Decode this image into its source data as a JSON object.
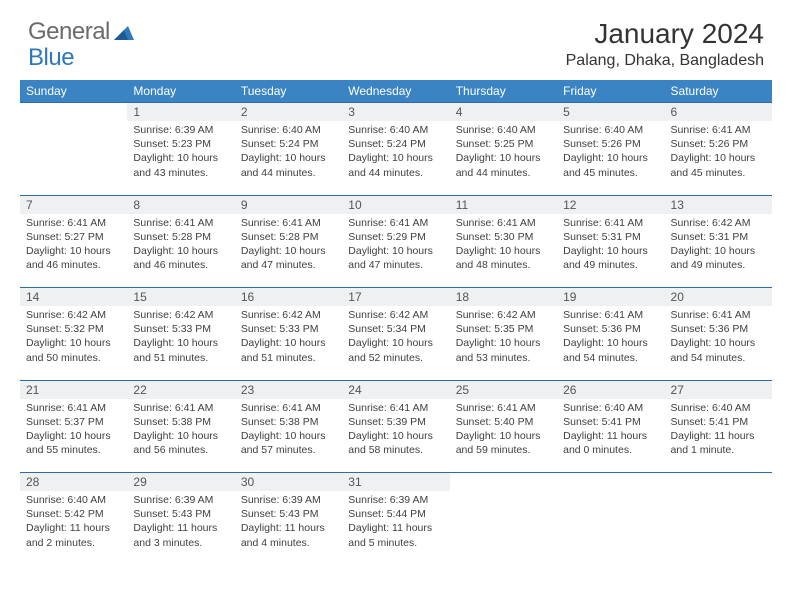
{
  "brand": {
    "part1": "General",
    "part2": "Blue"
  },
  "title": "January 2024",
  "location": "Palang, Dhaka, Bangladesh",
  "colors": {
    "header_bg": "#3b84c4",
    "rule": "#2d6da3",
    "daynum_bg": "#eef0f1",
    "brand_gray": "#6b6b6b",
    "brand_blue": "#2f78bd"
  },
  "weekdays": [
    "Sunday",
    "Monday",
    "Tuesday",
    "Wednesday",
    "Thursday",
    "Friday",
    "Saturday"
  ],
  "weeks": [
    {
      "nums": [
        "",
        "1",
        "2",
        "3",
        "4",
        "5",
        "6"
      ],
      "cells": [
        null,
        {
          "sr": "6:39 AM",
          "ss": "5:23 PM",
          "dl": "10 hours and 43 minutes."
        },
        {
          "sr": "6:40 AM",
          "ss": "5:24 PM",
          "dl": "10 hours and 44 minutes."
        },
        {
          "sr": "6:40 AM",
          "ss": "5:24 PM",
          "dl": "10 hours and 44 minutes."
        },
        {
          "sr": "6:40 AM",
          "ss": "5:25 PM",
          "dl": "10 hours and 44 minutes."
        },
        {
          "sr": "6:40 AM",
          "ss": "5:26 PM",
          "dl": "10 hours and 45 minutes."
        },
        {
          "sr": "6:41 AM",
          "ss": "5:26 PM",
          "dl": "10 hours and 45 minutes."
        }
      ]
    },
    {
      "nums": [
        "7",
        "8",
        "9",
        "10",
        "11",
        "12",
        "13"
      ],
      "cells": [
        {
          "sr": "6:41 AM",
          "ss": "5:27 PM",
          "dl": "10 hours and 46 minutes."
        },
        {
          "sr": "6:41 AM",
          "ss": "5:28 PM",
          "dl": "10 hours and 46 minutes."
        },
        {
          "sr": "6:41 AM",
          "ss": "5:28 PM",
          "dl": "10 hours and 47 minutes."
        },
        {
          "sr": "6:41 AM",
          "ss": "5:29 PM",
          "dl": "10 hours and 47 minutes."
        },
        {
          "sr": "6:41 AM",
          "ss": "5:30 PM",
          "dl": "10 hours and 48 minutes."
        },
        {
          "sr": "6:41 AM",
          "ss": "5:31 PM",
          "dl": "10 hours and 49 minutes."
        },
        {
          "sr": "6:42 AM",
          "ss": "5:31 PM",
          "dl": "10 hours and 49 minutes."
        }
      ]
    },
    {
      "nums": [
        "14",
        "15",
        "16",
        "17",
        "18",
        "19",
        "20"
      ],
      "cells": [
        {
          "sr": "6:42 AM",
          "ss": "5:32 PM",
          "dl": "10 hours and 50 minutes."
        },
        {
          "sr": "6:42 AM",
          "ss": "5:33 PM",
          "dl": "10 hours and 51 minutes."
        },
        {
          "sr": "6:42 AM",
          "ss": "5:33 PM",
          "dl": "10 hours and 51 minutes."
        },
        {
          "sr": "6:42 AM",
          "ss": "5:34 PM",
          "dl": "10 hours and 52 minutes."
        },
        {
          "sr": "6:42 AM",
          "ss": "5:35 PM",
          "dl": "10 hours and 53 minutes."
        },
        {
          "sr": "6:41 AM",
          "ss": "5:36 PM",
          "dl": "10 hours and 54 minutes."
        },
        {
          "sr": "6:41 AM",
          "ss": "5:36 PM",
          "dl": "10 hours and 54 minutes."
        }
      ]
    },
    {
      "nums": [
        "21",
        "22",
        "23",
        "24",
        "25",
        "26",
        "27"
      ],
      "cells": [
        {
          "sr": "6:41 AM",
          "ss": "5:37 PM",
          "dl": "10 hours and 55 minutes."
        },
        {
          "sr": "6:41 AM",
          "ss": "5:38 PM",
          "dl": "10 hours and 56 minutes."
        },
        {
          "sr": "6:41 AM",
          "ss": "5:38 PM",
          "dl": "10 hours and 57 minutes."
        },
        {
          "sr": "6:41 AM",
          "ss": "5:39 PM",
          "dl": "10 hours and 58 minutes."
        },
        {
          "sr": "6:41 AM",
          "ss": "5:40 PM",
          "dl": "10 hours and 59 minutes."
        },
        {
          "sr": "6:40 AM",
          "ss": "5:41 PM",
          "dl": "11 hours and 0 minutes."
        },
        {
          "sr": "6:40 AM",
          "ss": "5:41 PM",
          "dl": "11 hours and 1 minute."
        }
      ]
    },
    {
      "nums": [
        "28",
        "29",
        "30",
        "31",
        "",
        "",
        ""
      ],
      "cells": [
        {
          "sr": "6:40 AM",
          "ss": "5:42 PM",
          "dl": "11 hours and 2 minutes."
        },
        {
          "sr": "6:39 AM",
          "ss": "5:43 PM",
          "dl": "11 hours and 3 minutes."
        },
        {
          "sr": "6:39 AM",
          "ss": "5:43 PM",
          "dl": "11 hours and 4 minutes."
        },
        {
          "sr": "6:39 AM",
          "ss": "5:44 PM",
          "dl": "11 hours and 5 minutes."
        },
        null,
        null,
        null
      ]
    }
  ],
  "labels": {
    "sunrise": "Sunrise:",
    "sunset": "Sunset:",
    "daylight": "Daylight:"
  }
}
